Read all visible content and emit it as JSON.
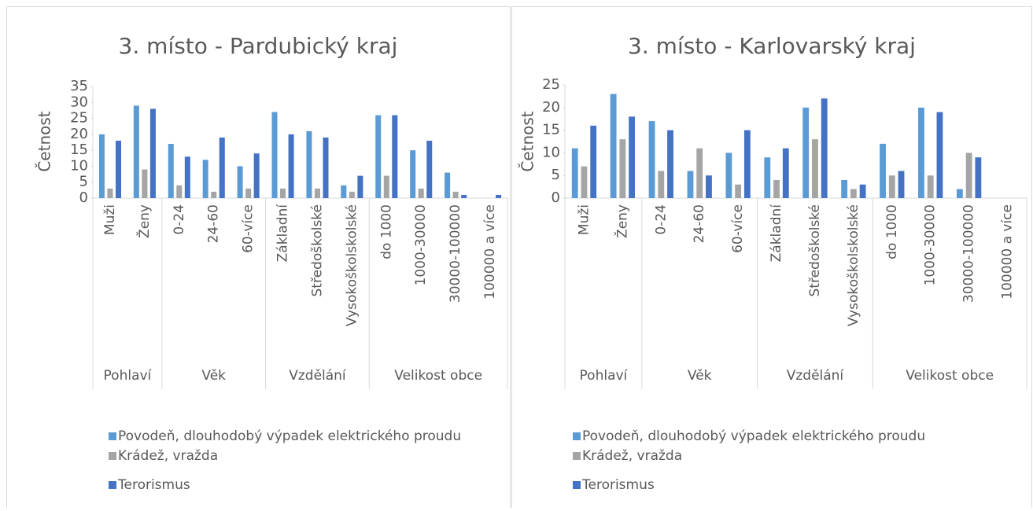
{
  "chart_data": [
    {
      "type": "bar",
      "title": "3. místo - Pardubický kraj",
      "y_label": "Četnost",
      "groups": [
        {
          "name": "Pohlaví",
          "categories": [
            "Muži",
            "Ženy"
          ]
        },
        {
          "name": "Věk",
          "categories": [
            "0-24",
            "24-60",
            "60-více"
          ]
        },
        {
          "name": "Vzdělání",
          "categories": [
            "Základní",
            "Středoškolské",
            "Vysokoškolskolské"
          ]
        },
        {
          "name": "Velikost obce",
          "categories": [
            "do 1000",
            "1000-30000",
            "30000-100000",
            "100000 a více"
          ]
        }
      ],
      "series": [
        {
          "name": "Povodeň, dlouhodobý výpadek elektrického proudu",
          "color": "#5b9bd5",
          "values": [
            20,
            29,
            17,
            12,
            10,
            27,
            21,
            4,
            26,
            15,
            8,
            0
          ]
        },
        {
          "name": "Krádež, vražda",
          "color": "#a5a5a5",
          "values": [
            3,
            9,
            4,
            2,
            3,
            3,
            3,
            2,
            7,
            3,
            2,
            0
          ]
        },
        {
          "name": "Terorismus",
          "color": "#4472c4",
          "values": [
            18,
            28,
            13,
            19,
            14,
            20,
            19,
            7,
            26,
            18,
            1,
            1
          ]
        }
      ],
      "ylim": [
        0,
        35
      ],
      "yticks": [
        0,
        5,
        10,
        15,
        20,
        25,
        30,
        35
      ],
      "legend": "bottom"
    },
    {
      "type": "bar",
      "title": "3. místo - Karlovarský kraj",
      "y_label": "Četnost",
      "groups": [
        {
          "name": "Pohlaví",
          "categories": [
            "Muži",
            "Ženy"
          ]
        },
        {
          "name": "Věk",
          "categories": [
            "0-24",
            "24-60",
            "60-více"
          ]
        },
        {
          "name": "Vzdělání",
          "categories": [
            "Základní",
            "Středoškolské",
            "Vysokoškolskolské"
          ]
        },
        {
          "name": "Velikost obce",
          "categories": [
            "do 1000",
            "1000-30000",
            "30000-100000",
            "100000 a více"
          ]
        }
      ],
      "series": [
        {
          "name": "Povodeň, dlouhodobý výpadek elektrického proudu",
          "color": "#5b9bd5",
          "values": [
            11,
            23,
            17,
            6,
            10,
            9,
            20,
            4,
            12,
            20,
            2,
            0
          ]
        },
        {
          "name": "Krádež, vražda",
          "color": "#a5a5a5",
          "values": [
            7,
            13,
            6,
            11,
            3,
            4,
            13,
            2,
            5,
            5,
            10,
            0
          ]
        },
        {
          "name": "Terorismus",
          "color": "#4472c4",
          "values": [
            16,
            18,
            15,
            5,
            15,
            11,
            22,
            3,
            6,
            19,
            9,
            0
          ]
        }
      ],
      "ylim": [
        0,
        25
      ],
      "yticks": [
        0,
        5,
        10,
        15,
        20,
        25
      ],
      "legend": "bottom"
    }
  ]
}
